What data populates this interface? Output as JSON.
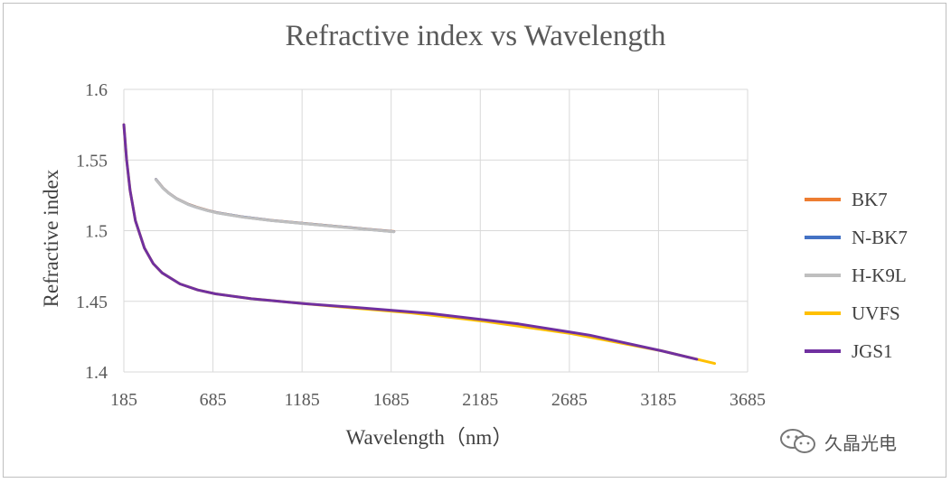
{
  "chart_data": {
    "type": "line",
    "title": "Refractive index vs Wavelength",
    "xlabel": "Wavelength（nm）",
    "ylabel": "Refractive index",
    "xlim": [
      185,
      3685
    ],
    "ylim": [
      1.4,
      1.6
    ],
    "xticks": [
      "185",
      "685",
      "1185",
      "1685",
      "2185",
      "2685",
      "3185",
      "3685"
    ],
    "yticks": [
      "1.4",
      "1.45",
      "1.5",
      "1.55",
      "1.6"
    ],
    "grid": true,
    "legend_position": "right",
    "series": [
      {
        "name": "BK7",
        "color": "#ED7D31",
        "x": [
          365,
          405,
          436,
          480,
          546,
          590,
          656,
          706,
          852,
          1014,
          1530,
          1700
        ],
        "y": [
          1.5363,
          1.5302,
          1.5267,
          1.5228,
          1.5187,
          1.5168,
          1.5143,
          1.5128,
          1.5098,
          1.5073,
          1.5013,
          1.4994
        ]
      },
      {
        "name": "N-BK7",
        "color": "#4472C4",
        "x": [
          365,
          405,
          436,
          480,
          546,
          590,
          656,
          706,
          852,
          1014,
          1530,
          1700
        ],
        "y": [
          1.5362,
          1.5301,
          1.5266,
          1.5227,
          1.5186,
          1.5167,
          1.5142,
          1.5127,
          1.5097,
          1.5072,
          1.5012,
          1.4993
        ]
      },
      {
        "name": "H-K9L",
        "color": "#BFBFBF",
        "x": [
          365,
          405,
          436,
          480,
          546,
          590,
          656,
          706,
          852,
          1014,
          1530,
          1700
        ],
        "y": [
          1.536,
          1.53,
          1.5265,
          1.5226,
          1.5185,
          1.5166,
          1.5141,
          1.5126,
          1.5096,
          1.5071,
          1.5011,
          1.4992
        ]
      },
      {
        "name": "UVFS",
        "color": "#FFC000",
        "x": [
          185,
          200,
          220,
          250,
          300,
          350,
          400,
          500,
          600,
          700,
          900,
          1200,
          1500,
          1800,
          2200,
          2700,
          3200,
          3500
        ],
        "y": [
          1.575,
          1.5505,
          1.5285,
          1.507,
          1.4878,
          1.4767,
          1.4701,
          1.4623,
          1.458,
          1.4553,
          1.4518,
          1.4483,
          1.445,
          1.4418,
          1.436,
          1.427,
          1.415,
          1.406
        ]
      },
      {
        "name": "JGS1",
        "color": "#7030A0",
        "x": [
          185,
          200,
          220,
          250,
          300,
          350,
          400,
          500,
          600,
          700,
          900,
          1200,
          1500,
          1900,
          2400,
          2800,
          3200,
          3400
        ],
        "y": [
          1.575,
          1.5505,
          1.5285,
          1.507,
          1.4878,
          1.4767,
          1.4701,
          1.4623,
          1.458,
          1.4553,
          1.4518,
          1.4483,
          1.4455,
          1.4415,
          1.434,
          1.426,
          1.415,
          1.409
        ]
      }
    ]
  },
  "watermark": {
    "text": "久晶光电"
  }
}
